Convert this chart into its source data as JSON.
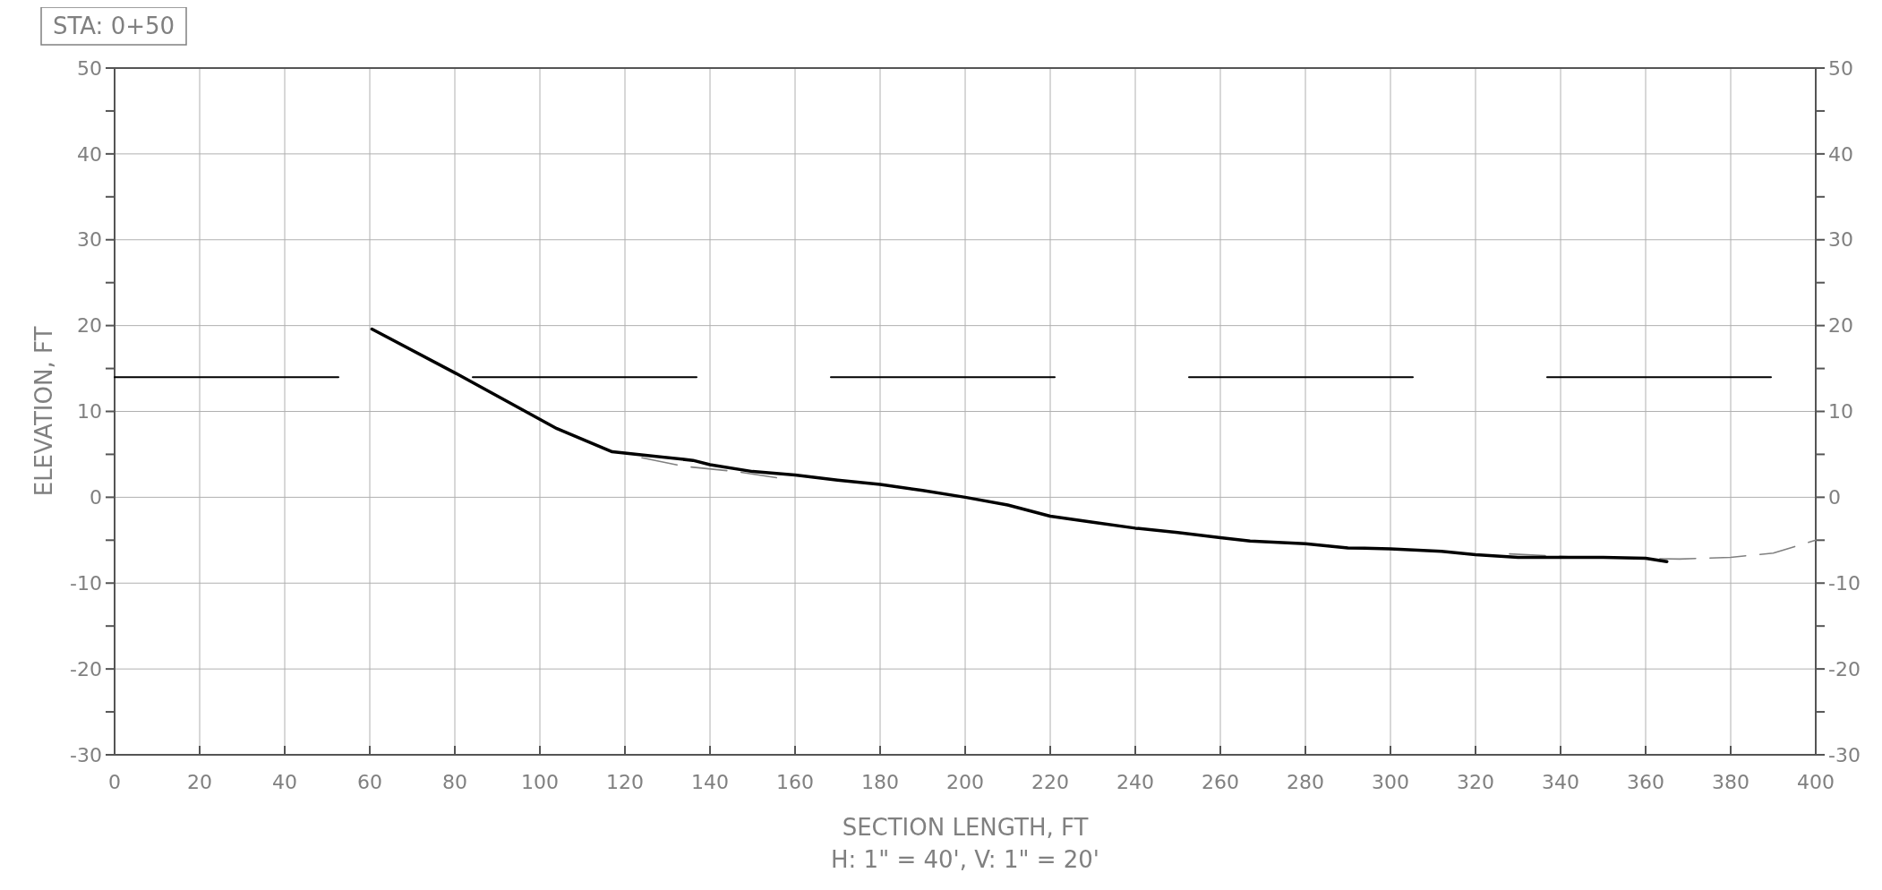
{
  "chart_data": {
    "type": "line",
    "title": "STA: 0+50",
    "xlabel": "SECTION LENGTH, FT",
    "ylabel": "ELEVATION, FT",
    "annotations": [
      "H: 1\" = 40', V: 1\" = 20'"
    ],
    "xlim": [
      0,
      400
    ],
    "xticks": [
      0,
      20,
      40,
      60,
      80,
      100,
      120,
      140,
      160,
      180,
      200,
      220,
      240,
      260,
      280,
      300,
      320,
      340,
      360,
      380,
      400
    ],
    "ylim": [
      -30,
      50
    ],
    "yticks": [
      -30,
      {
        "value": -25,
        "label": null
      },
      -20,
      {
        "value": -15,
        "label": null
      },
      -10,
      {
        "value": -5,
        "label": null
      },
      0,
      {
        "value": 5,
        "label": null
      },
      10,
      {
        "value": 15,
        "label": null
      },
      20,
      {
        "value": 25,
        "label": null
      },
      30,
      {
        "value": 35,
        "label": null
      },
      40,
      {
        "value": 45,
        "label": null
      },
      50
    ],
    "y2lim": [
      -30,
      50
    ],
    "y2ticks": [
      -30,
      {
        "value": -25,
        "label": null
      },
      -20,
      {
        "value": -15,
        "label": null
      },
      -10,
      {
        "value": -5,
        "label": null
      },
      0,
      {
        "value": 5,
        "label": null
      },
      10,
      {
        "value": 15,
        "label": null
      },
      20,
      {
        "value": 25,
        "label": null
      },
      30,
      {
        "value": 35,
        "label": null
      },
      40,
      {
        "value": 45,
        "label": null
      },
      50
    ],
    "grid": true,
    "series": [
      {
        "color": "#000000",
        "line_style": "dashed",
        "x": [
          0,
          400
        ],
        "values": [
          14,
          14
        ]
      },
      {
        "color": "#808080",
        "line_style": "dashed",
        "x": [
          124,
          134,
          146,
          158,
          200,
          328,
          345,
          368,
          380,
          390,
          400
        ],
        "values": [
          4.6,
          3.6,
          3.0,
          2.1,
          null,
          -6.6,
          -7.0,
          -7.2,
          -7.0,
          -6.5,
          -5.0
        ]
      },
      {
        "color": "#000000",
        "line_style": "solid",
        "x": [
          60.5,
          80,
          104,
          117,
          136,
          140,
          150,
          160,
          170,
          180,
          190,
          200,
          210,
          220,
          230,
          240,
          250,
          260,
          267,
          280,
          290,
          300,
          312,
          320,
          330,
          340,
          350,
          360,
          365
        ],
        "values": [
          19.6,
          14.5,
          8,
          5.3,
          4.3,
          3.8,
          3.0,
          2.6,
          2.0,
          1.5,
          0.8,
          0,
          -0.9,
          -2.2,
          -2.9,
          -3.6,
          -4.1,
          -4.7,
          -5.1,
          -5.4,
          -5.9,
          -6.0,
          -6.3,
          -6.7,
          -7.0,
          -7.0,
          -7.0,
          -7.1,
          -7.5
        ]
      }
    ]
  }
}
